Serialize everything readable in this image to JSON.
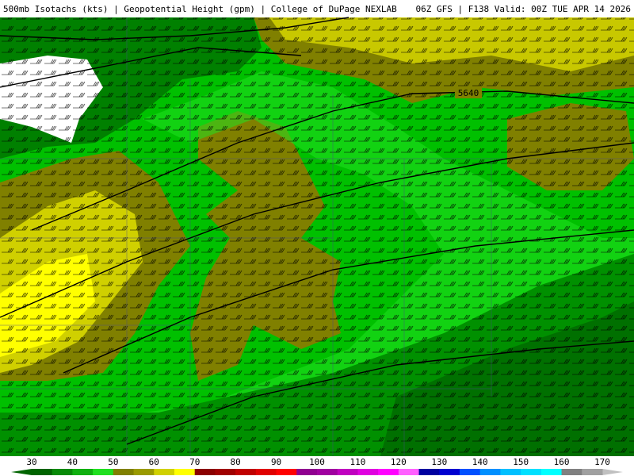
{
  "header": {
    "title": "500mb Isotachs (kts) | Geopotential Height (gpm) | College of DuPage NEXLAB",
    "run": "06Z GFS | F138 Valid: 00Z TUE APR 14 2026"
  },
  "map": {
    "contour_labels": [
      "5640"
    ]
  },
  "colorbar": {
    "labels": [
      30,
      40,
      50,
      60,
      70,
      80,
      90,
      100,
      110,
      120,
      130,
      140,
      150,
      160,
      170
    ]
  }
}
